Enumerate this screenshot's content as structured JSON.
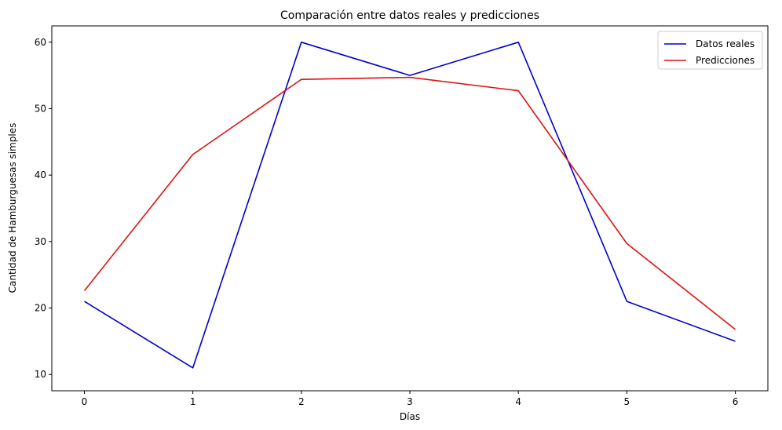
{
  "chart_data": {
    "type": "line",
    "title": "Comparación entre datos reales y predicciones",
    "xlabel": "Días",
    "ylabel": "Cantidad de Hamburguesas simples",
    "x": [
      0,
      1,
      2,
      3,
      4,
      5,
      6
    ],
    "xlim": [
      -0.3,
      6.3
    ],
    "ylim": [
      7.55,
      62.45
    ],
    "xticks": [
      0,
      1,
      2,
      3,
      4,
      5,
      6
    ],
    "yticks": [
      10,
      20,
      30,
      40,
      50,
      60
    ],
    "grid": false,
    "legend_position": "top-right",
    "series": [
      {
        "name": "Datos reales",
        "color": "#0000cc",
        "values": [
          21,
          11,
          60,
          55,
          60,
          21,
          15
        ]
      },
      {
        "name": "Predicciones",
        "color": "#dd1111",
        "values": [
          22.6,
          43.1,
          54.4,
          54.7,
          52.7,
          29.7,
          16.8
        ]
      }
    ]
  }
}
